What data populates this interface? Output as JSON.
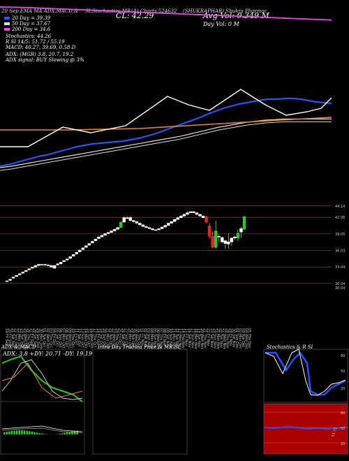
{
  "header": {
    "title_left": "20 Sep  EMA  MA  ADX,MACD,&",
    "title_mid": "SI,Stochastics,MR",
    "charts_label": "(A) Charts 524632",
    "symbol": "(SHUKRAPHAR)  Shukra Pharmac",
    "close_label": "CL: 42.29",
    "avg_vol": "Avg Vol: 0.349 M",
    "day_vol": "Day Vol: 0   M",
    "ma20": "20  Day  = 39.39",
    "ma50": "50  Day  = 37.67",
    "ma200": "200  Day  = 34.6",
    "stochastics": "Stochastics: 44.26",
    "rsi": "R              SI 14/5: 51.72 / 55.19",
    "macd": "MACD: 40.27, 39.69, 0.58  D",
    "adx": "ADX:                    (MGR) 3.8,  20.7,  19.2",
    "adx_signal": "ADX  signal:                              BUY Slowing @ 3%"
  },
  "colors": {
    "ma20": "#2255ff",
    "ma50": "#dddddd",
    "ma200": "#ee44ee",
    "ema_orange": "#ee8822",
    "up": "#22cc22",
    "down": "#ee2222",
    "level_line": "#aa5533",
    "macd_bg": "#aa0000"
  },
  "chart_data": {
    "type": "candlestick",
    "price_levels": [
      "44.14",
      "42.06",
      "39.05",
      "36.03",
      "33.04",
      "30.04",
      "30.04"
    ],
    "x_ticks": [
      "19 Fri Sep",
      "20 Fri Sep",
      "21 Sat Sep",
      "22 Sun Sep",
      "23 Mon Sep",
      "24 Tue Sep",
      "25 Wed Sep",
      "26 Thu Sep",
      "27 Fri Sep",
      "28 Sat Sep",
      "29 Sun Sep",
      "30 Mon Sep",
      "01 Tue Oct",
      "02 Wed Oct",
      "03 Thu Oct",
      "04 Fri Oct",
      "05 Sat Oct",
      "06 Sun Oct",
      "07 Mon Oct",
      "08 Tue Oct",
      "09 Wed Oct",
      "10 Thu Oct",
      "11 Fri Oct",
      "12 Sat Oct",
      "13 Sun Oct",
      "14 Mon Oct",
      "15 Tue Oct",
      "16 Wed Oct",
      "17 Thu Oct",
      "18 Fri Oct",
      "19 Sat Oct",
      "20 Sun Oct",
      "21 Mon Oct",
      "22 Tue Oct",
      "23 Wed Oct",
      "24 Thu Oct",
      "25 Fri Oct",
      "26 Sat Oct",
      "27 Sun Oct",
      "28 Mon Oct",
      "29 Tue Oct",
      "30 Wed Oct",
      "31 Thu Oct",
      "01 Fri Nov",
      "02 Sat Nov",
      "03 Sun Nov",
      "04 Mon Nov",
      "05 Tue Nov",
      "06 Wed Nov",
      "07 Thu Nov",
      "08 Fri Nov",
      "09 Sat Nov",
      "10 Sun Nov",
      "11 Mon Nov",
      "12 Tue Nov",
      "13 Wed Nov",
      "14 Thu Nov",
      "15 Fri Nov",
      "16 Sat Nov",
      "17 Sun Nov",
      "18 Mon Nov",
      "19 Tue Nov",
      "20 Wed Nov",
      "21 Thu Nov",
      "22 Fri Nov",
      "23 Sat Nov",
      "24 Sun Nov",
      "25 Mon Nov",
      "26 Tue Nov",
      "27 Wed Nov",
      "28 Thu Nov",
      "29 Fri Nov",
      "30 Sat Nov",
      "01 Sun Dec",
      "02 Mon Dec",
      "03 Tue Dec",
      "04 Wed Dec",
      "05 Thu Dec"
    ],
    "candles": [
      {
        "o": 30.4,
        "c": 30.5,
        "h": 30.6,
        "l": 30.3
      },
      {
        "o": 30.6,
        "c": 30.8,
        "h": 30.9,
        "l": 30.5
      },
      {
        "o": 31.0,
        "c": 31.2,
        "h": 31.3,
        "l": 30.9
      },
      {
        "o": 31.3,
        "c": 31.5,
        "h": 31.6,
        "l": 31.2
      },
      {
        "o": 31.6,
        "c": 31.8,
        "h": 31.9,
        "l": 31.5
      },
      {
        "o": 31.9,
        "c": 32.1,
        "h": 32.2,
        "l": 31.8
      },
      {
        "o": 32.2,
        "c": 32.4,
        "h": 32.5,
        "l": 32.1
      },
      {
        "o": 32.5,
        "c": 32.7,
        "h": 32.8,
        "l": 32.4
      },
      {
        "o": 32.8,
        "c": 33.0,
        "h": 33.1,
        "l": 32.7
      },
      {
        "o": 33.0,
        "c": 33.3,
        "h": 33.4,
        "l": 32.9
      },
      {
        "o": 33.3,
        "c": 33.5,
        "h": 33.6,
        "l": 33.2
      },
      {
        "o": 33.5,
        "c": 33.5,
        "h": 33.6,
        "l": 33.4
      },
      {
        "o": 33.5,
        "c": 33.4,
        "h": 33.6,
        "l": 33.3
      },
      {
        "o": 33.4,
        "c": 33.3,
        "h": 33.5,
        "l": 33.2
      },
      {
        "o": 33.3,
        "c": 33.0,
        "h": 33.4,
        "l": 32.9
      },
      {
        "o": 32.8,
        "c": 33.3,
        "h": 33.4,
        "l": 32.7
      },
      {
        "o": 33.4,
        "c": 33.6,
        "h": 33.7,
        "l": 33.3
      },
      {
        "o": 33.6,
        "c": 33.9,
        "h": 34.0,
        "l": 33.5
      },
      {
        "o": 34.0,
        "c": 34.2,
        "h": 34.3,
        "l": 33.9
      },
      {
        "o": 34.3,
        "c": 34.5,
        "h": 34.6,
        "l": 34.2
      },
      {
        "o": 34.6,
        "c": 34.9,
        "h": 35.0,
        "l": 34.5
      },
      {
        "o": 35.0,
        "c": 35.3,
        "h": 35.4,
        "l": 34.9
      },
      {
        "o": 35.4,
        "c": 35.7,
        "h": 35.8,
        "l": 35.3
      },
      {
        "o": 35.8,
        "c": 36.1,
        "h": 36.2,
        "l": 35.7
      },
      {
        "o": 36.2,
        "c": 36.5,
        "h": 36.6,
        "l": 36.1
      },
      {
        "o": 36.6,
        "c": 36.9,
        "h": 37.0,
        "l": 36.5
      },
      {
        "o": 37.0,
        "c": 37.3,
        "h": 37.4,
        "l": 36.9
      },
      {
        "o": 37.4,
        "c": 37.7,
        "h": 37.8,
        "l": 37.3
      },
      {
        "o": 37.8,
        "c": 38.1,
        "h": 38.2,
        "l": 37.7
      },
      {
        "o": 38.2,
        "c": 38.5,
        "h": 38.6,
        "l": 38.1
      },
      {
        "o": 38.5,
        "c": 38.8,
        "h": 38.9,
        "l": 38.4
      },
      {
        "o": 38.8,
        "c": 39.1,
        "h": 39.2,
        "l": 38.7
      },
      {
        "o": 39.1,
        "c": 39.3,
        "h": 39.4,
        "l": 39.0
      },
      {
        "o": 39.3,
        "c": 39.6,
        "h": 39.7,
        "l": 39.2
      },
      {
        "o": 39.6,
        "c": 39.9,
        "h": 40.0,
        "l": 39.5
      },
      {
        "o": 39.9,
        "c": 40.2,
        "h": 40.3,
        "l": 39.8
      },
      {
        "o": 40.2,
        "c": 41.2,
        "h": 41.3,
        "l": 40.1
      },
      {
        "o": 41.2,
        "c": 42.0,
        "h": 42.2,
        "l": 41.1
      },
      {
        "o": 42.0,
        "c": 42.0,
        "h": 42.3,
        "l": 41.8
      },
      {
        "o": 42.0,
        "c": 41.5,
        "h": 42.3,
        "l": 41.3
      },
      {
        "o": 41.5,
        "c": 41.3,
        "h": 41.6,
        "l": 41.1
      },
      {
        "o": 41.3,
        "c": 41.0,
        "h": 41.4,
        "l": 40.9
      },
      {
        "o": 41.0,
        "c": 40.7,
        "h": 41.1,
        "l": 40.6
      },
      {
        "o": 40.7,
        "c": 40.4,
        "h": 40.8,
        "l": 40.3
      },
      {
        "o": 40.4,
        "c": 40.2,
        "h": 40.5,
        "l": 40.1
      },
      {
        "o": 40.2,
        "c": 40.0,
        "h": 40.3,
        "l": 39.9
      },
      {
        "o": 40.0,
        "c": 39.8,
        "h": 40.1,
        "l": 39.7
      },
      {
        "o": 39.8,
        "c": 39.8,
        "h": 39.9,
        "l": 39.7
      },
      {
        "o": 39.8,
        "c": 40.0,
        "h": 40.1,
        "l": 39.7
      },
      {
        "o": 40.0,
        "c": 40.3,
        "h": 40.4,
        "l": 39.9
      },
      {
        "o": 40.3,
        "c": 40.6,
        "h": 40.7,
        "l": 40.2
      },
      {
        "o": 40.6,
        "c": 41.0,
        "h": 41.1,
        "l": 40.5
      },
      {
        "o": 41.0,
        "c": 41.3,
        "h": 41.4,
        "l": 40.9
      },
      {
        "o": 41.3,
        "c": 41.7,
        "h": 41.8,
        "l": 41.2
      },
      {
        "o": 41.7,
        "c": 42.0,
        "h": 42.1,
        "l": 41.6
      },
      {
        "o": 42.0,
        "c": 42.3,
        "h": 42.5,
        "l": 41.9
      },
      {
        "o": 42.3,
        "c": 42.6,
        "h": 42.8,
        "l": 42.2
      },
      {
        "o": 42.6,
        "c": 42.9,
        "h": 43.1,
        "l": 42.5
      },
      {
        "o": 42.9,
        "c": 43.1,
        "h": 43.2,
        "l": 42.8
      },
      {
        "o": 43.1,
        "c": 42.9,
        "h": 43.2,
        "l": 42.8
      },
      {
        "o": 42.9,
        "c": 42.6,
        "h": 43.0,
        "l": 42.5
      },
      {
        "o": 42.6,
        "c": 42.3,
        "h": 42.7,
        "l": 42.2
      },
      {
        "o": 42.3,
        "c": 42.0,
        "h": 42.4,
        "l": 41.9
      },
      {
        "o": 42.2,
        "c": 41.2,
        "h": 42.3,
        "l": 41.0
      },
      {
        "o": 40.5,
        "c": 38.6,
        "h": 41.0,
        "l": 38.2
      },
      {
        "o": 38.6,
        "c": 36.6,
        "h": 39.5,
        "l": 36.5
      },
      {
        "o": 36.6,
        "c": 39.6,
        "h": 41.5,
        "l": 36.4
      },
      {
        "o": 38.6,
        "c": 38.5,
        "h": 39.0,
        "l": 37.5
      },
      {
        "o": 38.4,
        "c": 37.6,
        "h": 38.5,
        "l": 37.4
      },
      {
        "o": 37.8,
        "c": 37.3,
        "h": 38.0,
        "l": 36.3
      },
      {
        "o": 37.2,
        "c": 37.6,
        "h": 39.2,
        "l": 36.4
      },
      {
        "o": 37.6,
        "c": 38.3,
        "h": 38.4,
        "l": 36.8
      },
      {
        "o": 38.3,
        "c": 38.5,
        "h": 38.7,
        "l": 38.0
      },
      {
        "o": 38.3,
        "c": 39.2,
        "h": 39.9,
        "l": 37.8
      },
      {
        "o": 39.4,
        "c": 40.0,
        "h": 40.3,
        "l": 38.3
      },
      {
        "o": 39.9,
        "c": 42.2,
        "h": 42.3,
        "l": 39.8
      }
    ],
    "lines": {
      "ma20": [
        30,
        30.2,
        30.5,
        30.8,
        31.1,
        31.4,
        31.6,
        31.9,
        32.2,
        32.5,
        32.8,
        33.0,
        33.2,
        33.3,
        33.4,
        33.5,
        33.6,
        33.8,
        34.0,
        34.3,
        34.6,
        35.0,
        35.4,
        35.8,
        36.2,
        36.6,
        37.0,
        37.5,
        37.9,
        38.3,
        38.6,
        38.9,
        39.1,
        39.3,
        39.5,
        39.6,
        39.6,
        39.7,
        39.7,
        39.6,
        39.4,
        39.2,
        39.1,
        39.0
      ],
      "ma50": [
        29,
        29.2,
        29.5,
        29.8,
        30.1,
        30.4,
        30.7,
        31.0,
        31.3,
        31.6,
        31.9,
        32.2,
        32.5,
        32.8,
        33.1,
        33.4,
        33.7,
        34.0,
        34.3,
        34.6,
        35.0,
        35.4,
        35.8,
        36.2,
        36.5,
        36.8,
        37.1,
        37.3,
        37.5,
        37.6,
        37.7,
        37.7,
        37.7,
        37.7,
        37.7,
        37.7
      ],
      "ma200": [
        44,
        43.9,
        43.8,
        43.6,
        43.4,
        43.2,
        43.0,
        42.8,
        42.6,
        42.4,
        42.2,
        42.0,
        41.8,
        41.6,
        41.4,
        41.2,
        41.0,
        40.8,
        40.6,
        40.4,
        40.2,
        40.0,
        39.8,
        39.6,
        39.4,
        39.2,
        39.0,
        38.8
      ]
    },
    "adx_panel": {
      "title": "ADX  & MACD",
      "readout": "ADX: 3.8  +DY: 20.71  -DY: 19.19"
    },
    "intraday_panel": {
      "title": "Intra  Day  Trading Price  & MR           SI"
    },
    "stoch_panel": {
      "title": "Stochastics & R           SI",
      "ticks": [
        "80",
        "50",
        "20"
      ],
      "rsi_ticks": [
        "80",
        "50",
        "20"
      ],
      "rsi_value": "51.72"
    }
  }
}
